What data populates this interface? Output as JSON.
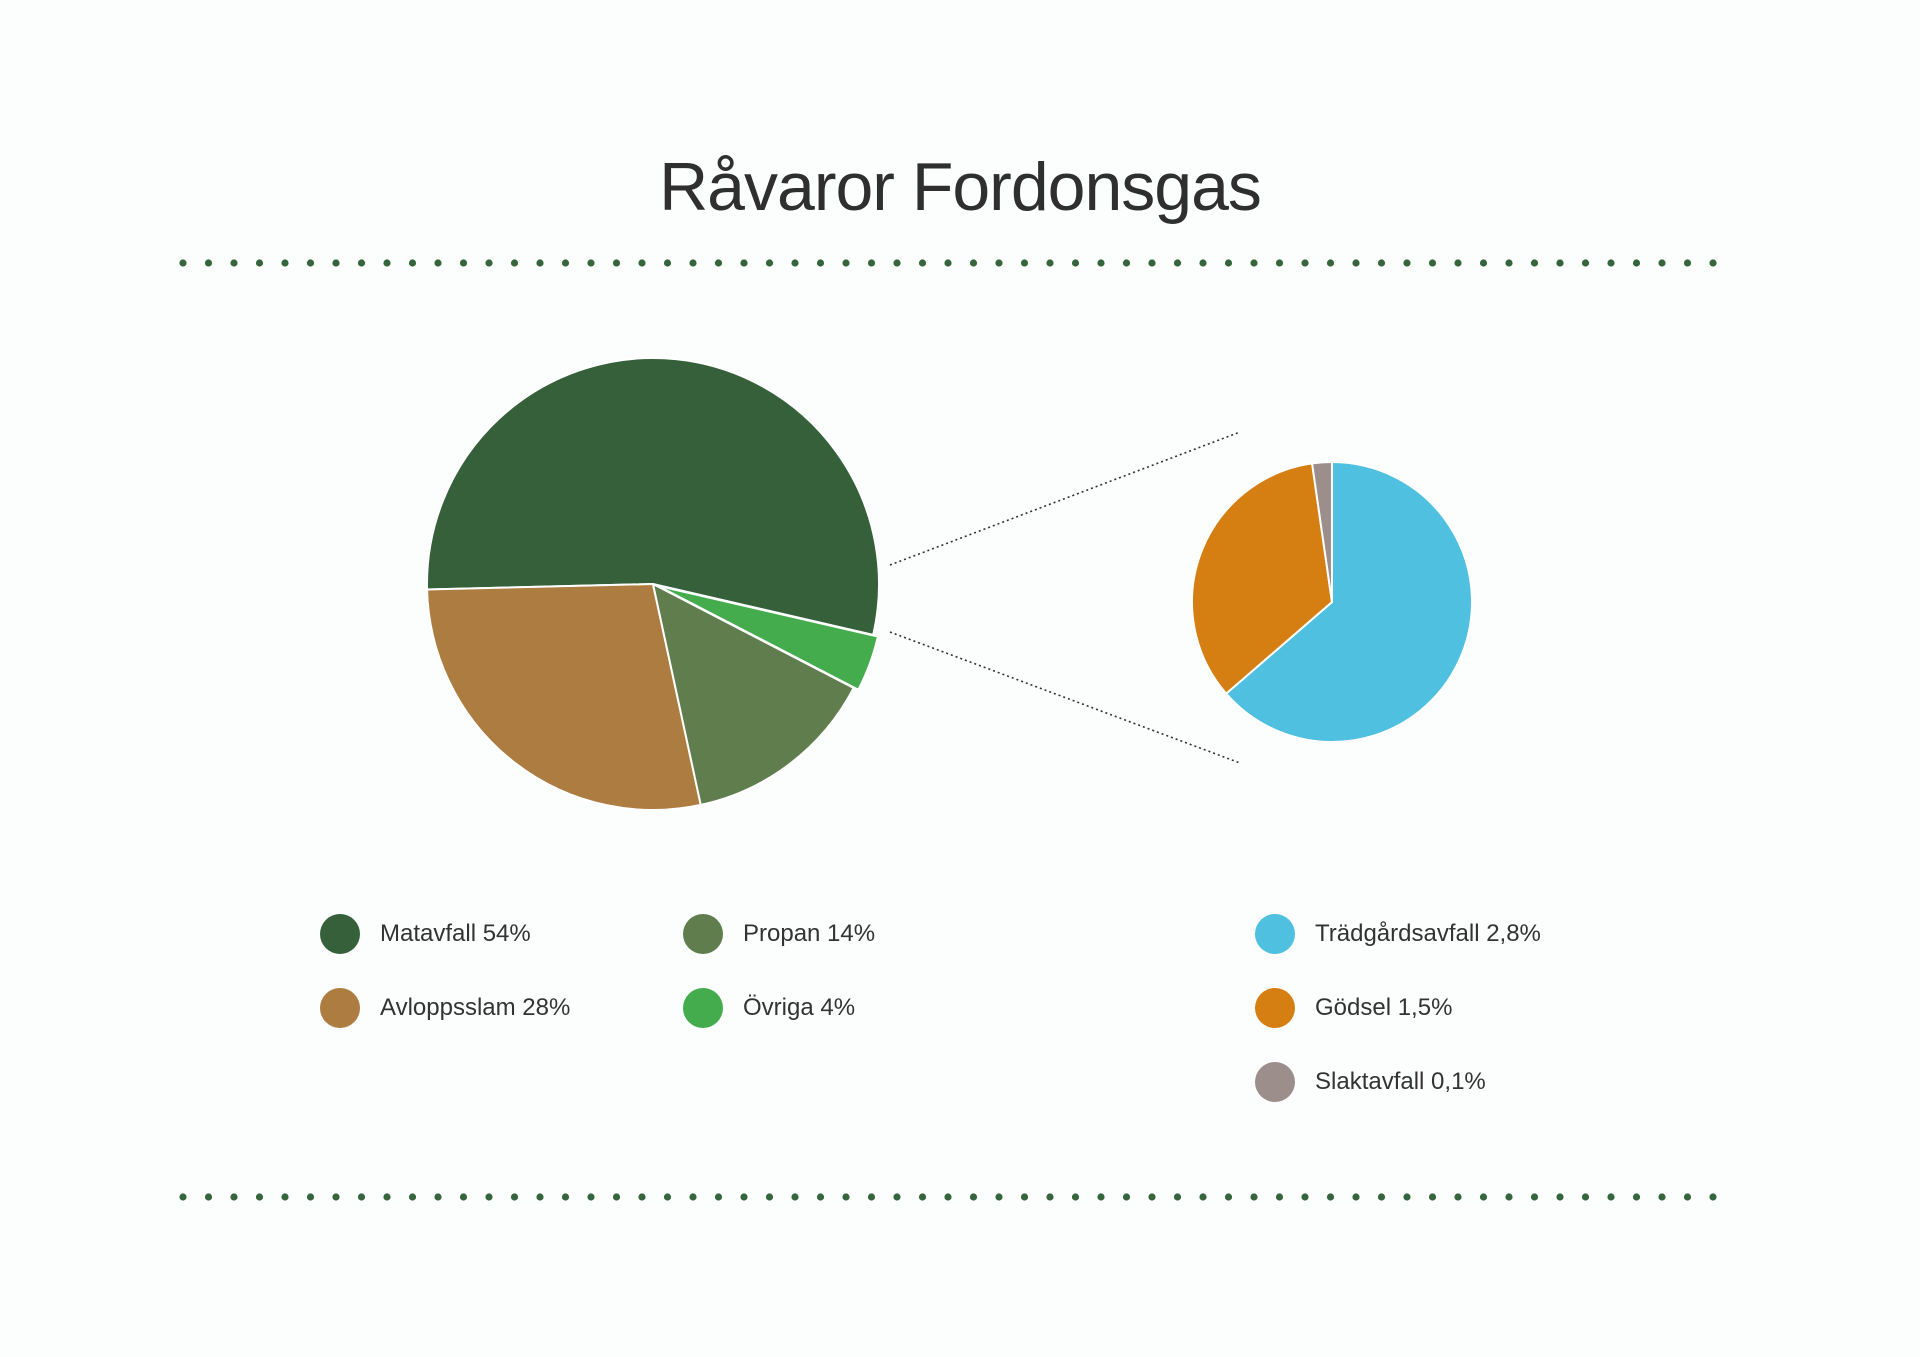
{
  "chart_data": [
    {
      "type": "pie",
      "title": "Råvaror Fordonsgas",
      "slices": [
        {
          "label": "Matavfall 54%",
          "value": 54,
          "color": "#35603a"
        },
        {
          "label": "Avloppsslam 28%",
          "value": 28,
          "color": "#ad7c40"
        },
        {
          "label": "Propan 14%",
          "value": 14,
          "color": "#5f7d4d"
        },
        {
          "label": "Övriga 4%",
          "value": 4,
          "color": "#44ac4c"
        }
      ],
      "exploded_slice": "Övriga 4%"
    },
    {
      "type": "pie",
      "slices": [
        {
          "label": "Trädgårdsavfall 2,8%",
          "value": 2.8,
          "color": "#4fc0e0"
        },
        {
          "label": "Gödsel 1,5%",
          "value": 1.5,
          "color": "#d57f12"
        },
        {
          "label": "Slaktavfall 0,1%",
          "value": 0.1,
          "color": "#9c8e8a"
        }
      ]
    }
  ],
  "colors": {
    "divider_dots": "#36643c",
    "title_text": "#2f2f2f",
    "slice_border": "#ffffff",
    "connector_lines": "#333333"
  }
}
